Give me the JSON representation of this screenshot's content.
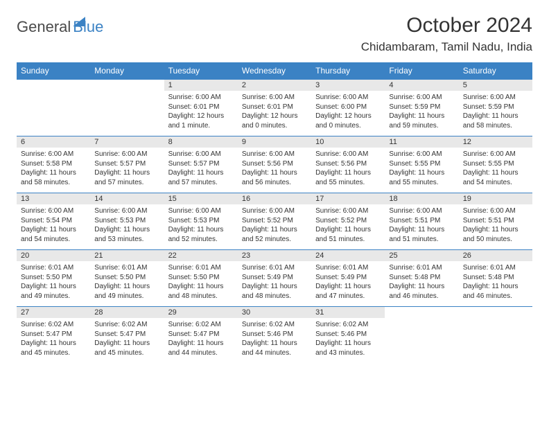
{
  "logo": {
    "text1": "General",
    "text2": "Blue"
  },
  "title": "October 2024",
  "location": "Chidambaram, Tamil Nadu, India",
  "dayNames": [
    "Sunday",
    "Monday",
    "Tuesday",
    "Wednesday",
    "Thursday",
    "Friday",
    "Saturday"
  ],
  "colors": {
    "headerBg": "#3b82c4",
    "dayNumBg": "#e8e8e8",
    "text": "#333333",
    "pageBg": "#ffffff"
  },
  "weeks": [
    [
      {
        "n": "",
        "sr": "",
        "ss": "",
        "dl": ""
      },
      {
        "n": "",
        "sr": "",
        "ss": "",
        "dl": ""
      },
      {
        "n": "1",
        "sr": "6:00 AM",
        "ss": "6:01 PM",
        "dl": "12 hours and 1 minute."
      },
      {
        "n": "2",
        "sr": "6:00 AM",
        "ss": "6:01 PM",
        "dl": "12 hours and 0 minutes."
      },
      {
        "n": "3",
        "sr": "6:00 AM",
        "ss": "6:00 PM",
        "dl": "12 hours and 0 minutes."
      },
      {
        "n": "4",
        "sr": "6:00 AM",
        "ss": "5:59 PM",
        "dl": "11 hours and 59 minutes."
      },
      {
        "n": "5",
        "sr": "6:00 AM",
        "ss": "5:59 PM",
        "dl": "11 hours and 58 minutes."
      }
    ],
    [
      {
        "n": "6",
        "sr": "6:00 AM",
        "ss": "5:58 PM",
        "dl": "11 hours and 58 minutes."
      },
      {
        "n": "7",
        "sr": "6:00 AM",
        "ss": "5:57 PM",
        "dl": "11 hours and 57 minutes."
      },
      {
        "n": "8",
        "sr": "6:00 AM",
        "ss": "5:57 PM",
        "dl": "11 hours and 57 minutes."
      },
      {
        "n": "9",
        "sr": "6:00 AM",
        "ss": "5:56 PM",
        "dl": "11 hours and 56 minutes."
      },
      {
        "n": "10",
        "sr": "6:00 AM",
        "ss": "5:56 PM",
        "dl": "11 hours and 55 minutes."
      },
      {
        "n": "11",
        "sr": "6:00 AM",
        "ss": "5:55 PM",
        "dl": "11 hours and 55 minutes."
      },
      {
        "n": "12",
        "sr": "6:00 AM",
        "ss": "5:55 PM",
        "dl": "11 hours and 54 minutes."
      }
    ],
    [
      {
        "n": "13",
        "sr": "6:00 AM",
        "ss": "5:54 PM",
        "dl": "11 hours and 54 minutes."
      },
      {
        "n": "14",
        "sr": "6:00 AM",
        "ss": "5:53 PM",
        "dl": "11 hours and 53 minutes."
      },
      {
        "n": "15",
        "sr": "6:00 AM",
        "ss": "5:53 PM",
        "dl": "11 hours and 52 minutes."
      },
      {
        "n": "16",
        "sr": "6:00 AM",
        "ss": "5:52 PM",
        "dl": "11 hours and 52 minutes."
      },
      {
        "n": "17",
        "sr": "6:00 AM",
        "ss": "5:52 PM",
        "dl": "11 hours and 51 minutes."
      },
      {
        "n": "18",
        "sr": "6:00 AM",
        "ss": "5:51 PM",
        "dl": "11 hours and 51 minutes."
      },
      {
        "n": "19",
        "sr": "6:00 AM",
        "ss": "5:51 PM",
        "dl": "11 hours and 50 minutes."
      }
    ],
    [
      {
        "n": "20",
        "sr": "6:01 AM",
        "ss": "5:50 PM",
        "dl": "11 hours and 49 minutes."
      },
      {
        "n": "21",
        "sr": "6:01 AM",
        "ss": "5:50 PM",
        "dl": "11 hours and 49 minutes."
      },
      {
        "n": "22",
        "sr": "6:01 AM",
        "ss": "5:50 PM",
        "dl": "11 hours and 48 minutes."
      },
      {
        "n": "23",
        "sr": "6:01 AM",
        "ss": "5:49 PM",
        "dl": "11 hours and 48 minutes."
      },
      {
        "n": "24",
        "sr": "6:01 AM",
        "ss": "5:49 PM",
        "dl": "11 hours and 47 minutes."
      },
      {
        "n": "25",
        "sr": "6:01 AM",
        "ss": "5:48 PM",
        "dl": "11 hours and 46 minutes."
      },
      {
        "n": "26",
        "sr": "6:01 AM",
        "ss": "5:48 PM",
        "dl": "11 hours and 46 minutes."
      }
    ],
    [
      {
        "n": "27",
        "sr": "6:02 AM",
        "ss": "5:47 PM",
        "dl": "11 hours and 45 minutes."
      },
      {
        "n": "28",
        "sr": "6:02 AM",
        "ss": "5:47 PM",
        "dl": "11 hours and 45 minutes."
      },
      {
        "n": "29",
        "sr": "6:02 AM",
        "ss": "5:47 PM",
        "dl": "11 hours and 44 minutes."
      },
      {
        "n": "30",
        "sr": "6:02 AM",
        "ss": "5:46 PM",
        "dl": "11 hours and 44 minutes."
      },
      {
        "n": "31",
        "sr": "6:02 AM",
        "ss": "5:46 PM",
        "dl": "11 hours and 43 minutes."
      },
      {
        "n": "",
        "sr": "",
        "ss": "",
        "dl": ""
      },
      {
        "n": "",
        "sr": "",
        "ss": "",
        "dl": ""
      }
    ]
  ],
  "labels": {
    "sunrise": "Sunrise:",
    "sunset": "Sunset:",
    "daylight": "Daylight:"
  }
}
